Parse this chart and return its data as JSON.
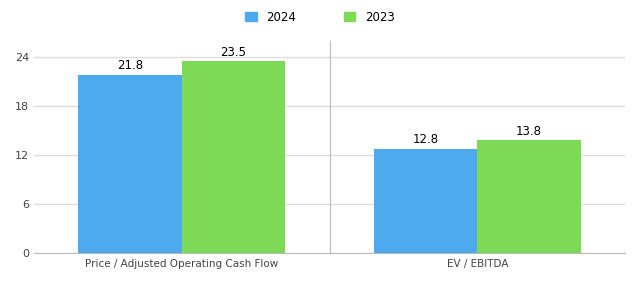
{
  "groups": [
    "Price / Adjusted Operating Cash Flow",
    "EV / EBITDA"
  ],
  "values_2024": [
    21.8,
    12.8
  ],
  "values_2023": [
    23.5,
    13.8
  ],
  "color_2024": "#4DAAEE",
  "color_2023": "#7ED957",
  "ylim": [
    0,
    26
  ],
  "yticks": [
    0,
    6,
    12,
    18,
    24
  ],
  "bar_width": 0.42,
  "legend_labels": [
    "2024",
    "2023"
  ],
  "background_color": "#FFFFFF",
  "grid_color": "#DDDDDD",
  "label_fontsize": 7.5,
  "annotation_fontsize": 8.5,
  "tick_fontsize": 8
}
